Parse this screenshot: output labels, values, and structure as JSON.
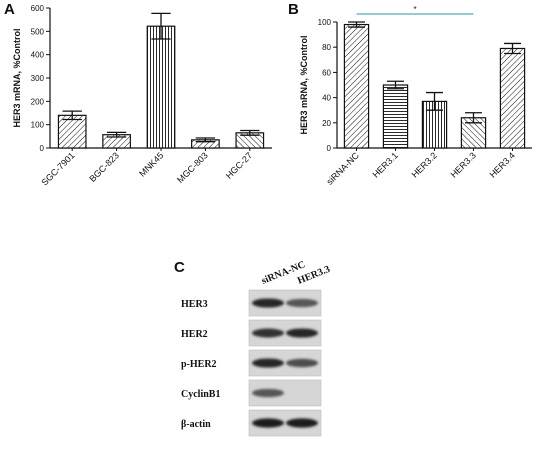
{
  "panels": {
    "a": {
      "letter": "A"
    },
    "b": {
      "letter": "B",
      "significance": "*"
    },
    "c": {
      "letter": "C"
    }
  },
  "chart_data": [
    {
      "type": "bar",
      "panel": "A",
      "categories": [
        "SGC-7901",
        "BGC-823",
        "MNK45",
        "MGC-803",
        "HGC-27"
      ],
      "values": [
        140,
        57,
        522,
        35,
        65
      ],
      "errors": [
        18,
        10,
        55,
        8,
        10
      ],
      "ylabel": "HER3 mRNA, %Control",
      "ylim": [
        0,
        600
      ],
      "yticks": [
        0,
        100,
        200,
        300,
        400,
        500,
        600
      ],
      "grid": false,
      "bar_fill": "hatched"
    },
    {
      "type": "bar",
      "panel": "B",
      "categories": [
        "siRNA-NC",
        "HER3.1",
        "HER3.2",
        "HER3.3",
        "HER3.4"
      ],
      "values": [
        98,
        50,
        37,
        24,
        79
      ],
      "errors": [
        2,
        3,
        7,
        4,
        4
      ],
      "ylabel": "HER3 mRNA, %Control",
      "ylim": [
        0,
        100
      ],
      "yticks": [
        0,
        20,
        40,
        60,
        80,
        100
      ],
      "grid": false,
      "bar_fill": "patterned",
      "significance_bracket": {
        "from": "siRNA-NC",
        "to": "HER3.3",
        "label": "*",
        "color": "#5aa6b5"
      }
    }
  ],
  "western_blot": {
    "columns": [
      "siRNA-NC",
      "HER3.3"
    ],
    "rows": [
      {
        "label": "HER3",
        "intensity": [
          0.85,
          0.6
        ]
      },
      {
        "label": "HER2",
        "intensity": [
          0.8,
          0.85
        ]
      },
      {
        "label": "p-HER2",
        "intensity": [
          0.85,
          0.65
        ]
      },
      {
        "label": "CyclinB1",
        "intensity": [
          0.6,
          0.0
        ]
      },
      {
        "label": "β-actin",
        "intensity": [
          0.9,
          0.9
        ]
      }
    ]
  }
}
